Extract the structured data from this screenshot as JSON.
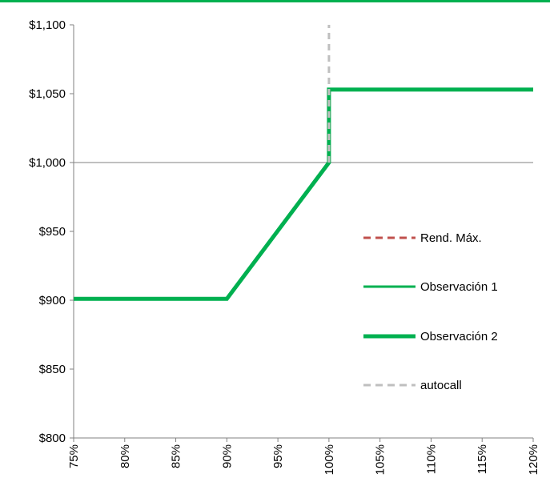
{
  "chart_data": {
    "type": "line",
    "xlabel": "",
    "ylabel": "",
    "xlim": [
      75,
      120
    ],
    "ylim": [
      800,
      1100
    ],
    "x_ticks": [
      75,
      80,
      85,
      90,
      95,
      100,
      105,
      110,
      115,
      120
    ],
    "x_tick_labels": [
      "75%",
      "80%",
      "85%",
      "90%",
      "95%",
      "100%",
      "105%",
      "110%",
      "115%",
      "120%"
    ],
    "y_ticks": [
      800,
      850,
      900,
      950,
      1000,
      1050,
      1100
    ],
    "y_tick_labels": [
      "$800",
      "$850",
      "$900",
      "$950",
      "$1,000",
      "$1,050",
      "$1,100"
    ],
    "reference_line_y": 1000,
    "legend_position": "right",
    "series": [
      {
        "name": "Rend. Máx.",
        "color": "#c0504d",
        "style": "dashed",
        "width": 3,
        "x": [
          100,
          100
        ],
        "y": [
          1000,
          1053
        ]
      },
      {
        "name": "Observación 1",
        "color": "#00b050",
        "style": "solid",
        "width": 3,
        "x": [
          75,
          90,
          100,
          100,
          120
        ],
        "y": [
          901,
          901,
          1000,
          1053,
          1053
        ]
      },
      {
        "name": "Observación 2",
        "color": "#00b050",
        "style": "solid",
        "width": 5,
        "x": [
          75,
          90,
          100,
          100,
          120
        ],
        "y": [
          901,
          901,
          1000,
          1053,
          1053
        ]
      },
      {
        "name": "autocall",
        "color": "#bfbfbf",
        "style": "dashed",
        "width": 3,
        "x": [
          100,
          100
        ],
        "y": [
          1000,
          1100
        ]
      }
    ]
  },
  "colors": {
    "accent": "#00b050",
    "axis": "#808080"
  }
}
